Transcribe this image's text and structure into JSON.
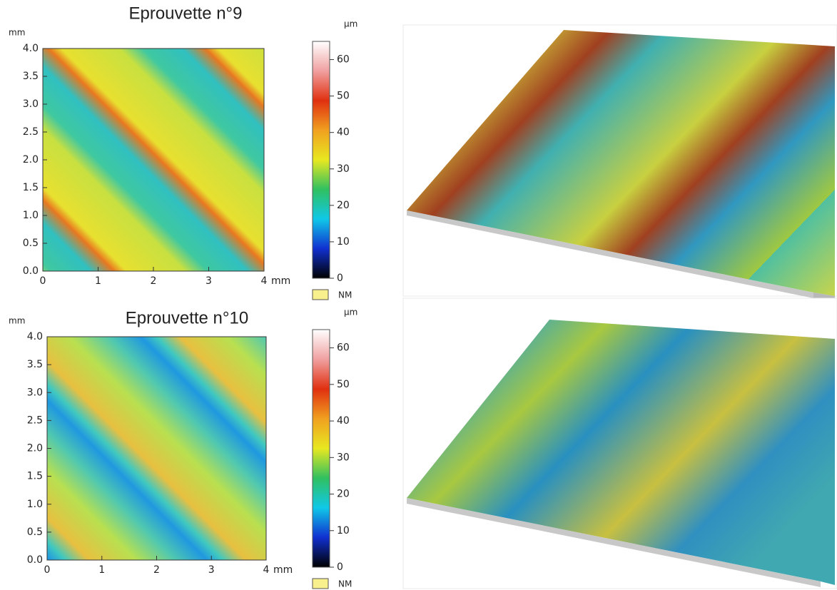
{
  "chart_data": [
    {
      "type": "heatmap",
      "title": "Eprouvette n°9",
      "xlabel": "mm",
      "ylabel": "mm",
      "xlim": [
        0,
        4
      ],
      "ylim": [
        0,
        4
      ],
      "xticks": [
        0,
        1,
        2,
        3,
        4
      ],
      "yticks": [
        {
          "value": 0,
          "label": "0.0"
        },
        0.5,
        {
          "value": 1,
          "label": "1.0"
        },
        1.5,
        {
          "value": 2,
          "label": "2.0"
        },
        2.5,
        {
          "value": 3,
          "label": "3.0"
        },
        3.5,
        {
          "value": 4,
          "label": "4.0"
        }
      ],
      "colorbar_label": "µm",
      "clim": [
        0,
        65
      ],
      "cticks": [
        0,
        10,
        20,
        30,
        40,
        50,
        60
      ],
      "colormap": [
        "#000000",
        "#1030d0",
        "#10c8e8",
        "#30c060",
        "#e8e820",
        "#f0a020",
        "#e03010",
        "#f0a0a0",
        "#ffffff"
      ],
      "legend": "NM",
      "legend_color": "#f8f08c"
    },
    {
      "type": "heatmap",
      "title": "Eprouvette n°10",
      "xlabel": "mm",
      "ylabel": "mm",
      "xlim": [
        0,
        4
      ],
      "ylim": [
        0,
        4
      ],
      "xticks": [
        0,
        1,
        2,
        3,
        4
      ],
      "yticks": [
        {
          "value": 0,
          "label": "0.0"
        },
        0.5,
        {
          "value": 1,
          "label": "1.0"
        },
        1.5,
        {
          "value": 2,
          "label": "2.0"
        },
        2.5,
        {
          "value": 3,
          "label": "3.0"
        },
        3.5,
        {
          "value": 4,
          "label": "4.0"
        }
      ],
      "colorbar_label": "µm",
      "clim": [
        0,
        65
      ],
      "cticks": [
        0,
        10,
        20,
        30,
        40,
        50,
        60
      ],
      "colormap": [
        "#000000",
        "#1030d0",
        "#10c8e8",
        "#30c060",
        "#e8e820",
        "#f0a020",
        "#e03010",
        "#f0a0a0",
        "#ffffff"
      ],
      "legend": "NM",
      "legend_color": "#f8f08c"
    }
  ]
}
